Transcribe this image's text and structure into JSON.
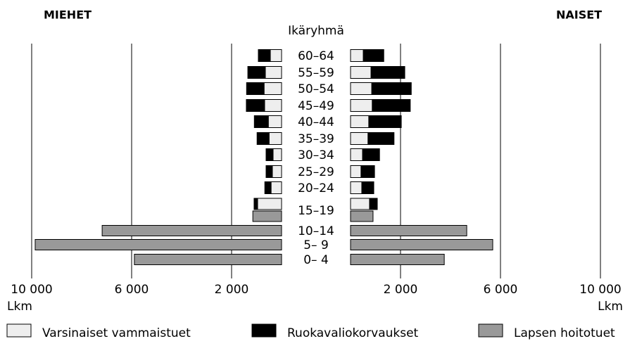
{
  "chart_data": {
    "type": "bar",
    "y_label": "Ikäryhmä",
    "x_unit": "Lkm",
    "categories": [
      "60–64",
      "55–59",
      "50–54",
      "45–49",
      "40–44",
      "35–39",
      "30–34",
      "25–29",
      "20–24",
      "15–19",
      "10–14",
      "5– 9",
      "0– 4"
    ],
    "series": [
      {
        "name": "Varsinaiset vammaistuet",
        "color": "#eeeeee"
      },
      {
        "name": "Ruokavaliokorvaukset",
        "color": "#000000"
      },
      {
        "name": "Lapsen hoitotuet",
        "color": "#999999"
      }
    ],
    "sides": [
      {
        "title": "MIEHET",
        "values": [
          [
            450,
            650,
            700,
            680,
            530,
            500,
            340,
            370,
            420,
            960,
            null,
            null,
            null
          ],
          [
            480,
            700,
            700,
            730,
            560,
            480,
            280,
            250,
            250,
            140,
            null,
            null,
            null
          ],
          [
            null,
            null,
            null,
            null,
            null,
            null,
            null,
            null,
            null,
            1150,
            7180,
            9860,
            5890
          ]
        ]
      },
      {
        "title": "NAISET",
        "values": [
          [
            510,
            820,
            850,
            870,
            730,
            700,
            480,
            420,
            450,
            760,
            null,
            null,
            null
          ],
          [
            820,
            1350,
            1580,
            1520,
            1300,
            1040,
            680,
            540,
            480,
            310,
            null,
            null,
            null
          ],
          [
            null,
            null,
            null,
            null,
            null,
            null,
            null,
            null,
            null,
            900,
            4650,
            5690,
            3750
          ]
        ]
      }
    ],
    "xlim": [
      0,
      10000
    ],
    "xticks": [
      {
        "value": 2000,
        "label": "2 000"
      },
      {
        "value": 6000,
        "label": "6 000"
      },
      {
        "value": 10000,
        "label": "10 000"
      }
    ],
    "grid": true
  }
}
